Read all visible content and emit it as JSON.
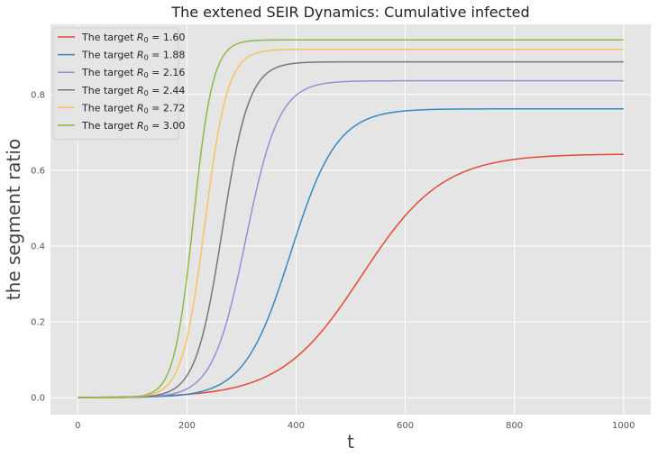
{
  "chart_data": {
    "type": "line",
    "title": "The extened SEIR Dynamics: Cumulative infected",
    "xlabel": "t",
    "ylabel": "the segment ratio",
    "xlim": [
      -50,
      1050
    ],
    "ylim": [
      -0.045,
      0.985
    ],
    "xticks": [
      0,
      200,
      400,
      600,
      800,
      1000
    ],
    "yticks": [
      0.0,
      0.2,
      0.4,
      0.6,
      0.8
    ],
    "grid": true,
    "background": "#e5e5e5",
    "legend_position": "top-left",
    "series": [
      {
        "name": "The target R0 = 1.60",
        "name_prefix": "The target ",
        "name_value": "1.60",
        "color": "#E24A33",
        "final": 0.643,
        "midpoint": 520,
        "rate": 0.0135
      },
      {
        "name": "The target R0 = 1.88",
        "name_prefix": "The target ",
        "name_value": "1.88",
        "color": "#348ABD",
        "final": 0.762,
        "midpoint": 390,
        "rate": 0.0235
      },
      {
        "name": "The target R0 = 2.16",
        "name_prefix": "The target ",
        "name_value": "2.16",
        "color": "#988ED5",
        "final": 0.836,
        "midpoint": 308,
        "rate": 0.033
      },
      {
        "name": "The target R0 = 2.44",
        "name_prefix": "The target ",
        "name_value": "2.44",
        "color": "#777777",
        "final": 0.886,
        "midpoint": 265,
        "rate": 0.041
      },
      {
        "name": "The target R0 = 2.72",
        "name_prefix": "The target ",
        "name_value": "2.72",
        "color": "#FBC15E",
        "final": 0.919,
        "midpoint": 233,
        "rate": 0.048
      },
      {
        "name": "The target R0 = 3.00",
        "name_prefix": "The target ",
        "name_value": "3.00",
        "color": "#8EBA42",
        "final": 0.944,
        "midpoint": 212,
        "rate": 0.056
      }
    ]
  }
}
